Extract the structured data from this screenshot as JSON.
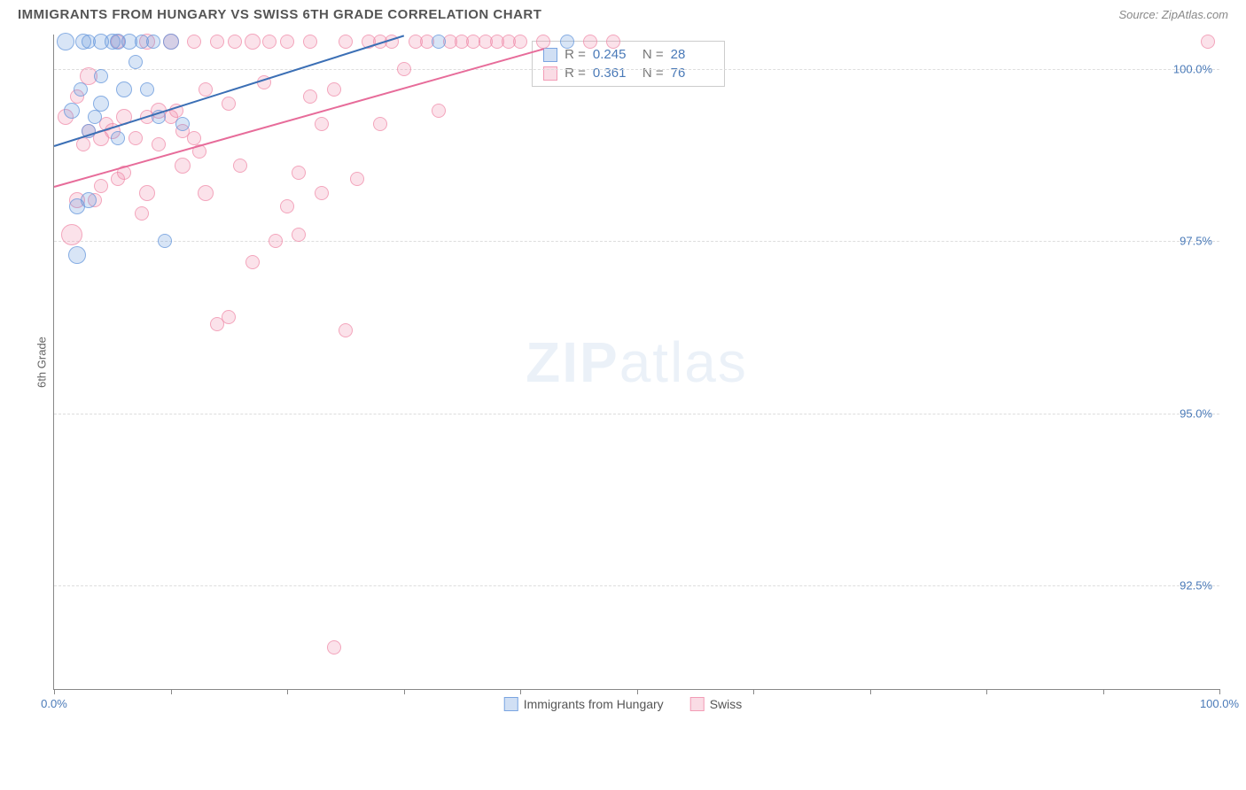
{
  "header": {
    "title": "IMMIGRANTS FROM HUNGARY VS SWISS 6TH GRADE CORRELATION CHART",
    "source": "Source: ZipAtlas.com"
  },
  "chart": {
    "type": "scatter",
    "ylabel": "6th Grade",
    "xlim": [
      0,
      100
    ],
    "ylim": [
      91,
      100.5
    ],
    "yticks": [
      {
        "v": 92.5,
        "label": "92.5%"
      },
      {
        "v": 95.0,
        "label": "95.0%"
      },
      {
        "v": 97.5,
        "label": "97.5%"
      },
      {
        "v": 100.0,
        "label": "100.0%"
      }
    ],
    "xtick_positions": [
      0,
      10,
      20,
      30,
      40,
      50,
      60,
      70,
      80,
      90,
      100
    ],
    "xtick_labels": {
      "0": "0.0%",
      "100": "100.0%"
    },
    "background_color": "#ffffff",
    "grid_color": "#dddddd",
    "series": {
      "hungary": {
        "label": "Immigrants from Hungary",
        "color_fill": "rgba(100,150,220,0.25)",
        "color_stroke": "rgba(100,150,220,0.7)",
        "trend_color": "#3b6fb5",
        "trend": {
          "x1": 0,
          "y1": 98.9,
          "x2": 30,
          "y2": 100.5
        },
        "R": "0.245",
        "N": "28",
        "points": [
          {
            "x": 1,
            "y": 100.4,
            "r": 10
          },
          {
            "x": 1.5,
            "y": 99.4,
            "r": 9
          },
          {
            "x": 2,
            "y": 98.0,
            "r": 9
          },
          {
            "x": 2,
            "y": 97.3,
            "r": 10
          },
          {
            "x": 2.3,
            "y": 99.7,
            "r": 8
          },
          {
            "x": 2.5,
            "y": 100.4,
            "r": 9
          },
          {
            "x": 3,
            "y": 99.1,
            "r": 8
          },
          {
            "x": 3,
            "y": 98.1,
            "r": 9
          },
          {
            "x": 3,
            "y": 100.4,
            "r": 8
          },
          {
            "x": 3.5,
            "y": 99.3,
            "r": 8
          },
          {
            "x": 4,
            "y": 99.5,
            "r": 9
          },
          {
            "x": 4,
            "y": 99.9,
            "r": 8
          },
          {
            "x": 4,
            "y": 100.4,
            "r": 9
          },
          {
            "x": 5,
            "y": 100.4,
            "r": 9
          },
          {
            "x": 5.5,
            "y": 99.0,
            "r": 8
          },
          {
            "x": 5.5,
            "y": 100.4,
            "r": 9
          },
          {
            "x": 6,
            "y": 99.7,
            "r": 9
          },
          {
            "x": 6.5,
            "y": 100.4,
            "r": 9
          },
          {
            "x": 7,
            "y": 100.1,
            "r": 8
          },
          {
            "x": 7.5,
            "y": 100.4,
            "r": 8
          },
          {
            "x": 8,
            "y": 99.7,
            "r": 8
          },
          {
            "x": 8.5,
            "y": 100.4,
            "r": 8
          },
          {
            "x": 9,
            "y": 99.3,
            "r": 8
          },
          {
            "x": 9.5,
            "y": 97.5,
            "r": 8
          },
          {
            "x": 10,
            "y": 100.4,
            "r": 9
          },
          {
            "x": 11,
            "y": 99.2,
            "r": 8
          },
          {
            "x": 33,
            "y": 100.4,
            "r": 8
          },
          {
            "x": 44,
            "y": 100.4,
            "r": 8
          }
        ]
      },
      "swiss": {
        "label": "Swiss",
        "color_fill": "rgba(240,140,170,0.25)",
        "color_stroke": "rgba(240,140,170,0.7)",
        "trend_color": "#e76c9a",
        "trend": {
          "x1": 0,
          "y1": 98.3,
          "x2": 42,
          "y2": 100.3
        },
        "R": "0.361",
        "N": "76",
        "points": [
          {
            "x": 1,
            "y": 99.3,
            "r": 9
          },
          {
            "x": 1.5,
            "y": 97.6,
            "r": 12
          },
          {
            "x": 2,
            "y": 98.1,
            "r": 9
          },
          {
            "x": 2,
            "y": 99.6,
            "r": 8
          },
          {
            "x": 2.5,
            "y": 98.9,
            "r": 8
          },
          {
            "x": 3,
            "y": 99.1,
            "r": 8
          },
          {
            "x": 3,
            "y": 99.9,
            "r": 10
          },
          {
            "x": 3.5,
            "y": 98.1,
            "r": 8
          },
          {
            "x": 4,
            "y": 99.0,
            "r": 9
          },
          {
            "x": 4,
            "y": 98.3,
            "r": 8
          },
          {
            "x": 4.5,
            "y": 99.2,
            "r": 8
          },
          {
            "x": 5,
            "y": 99.1,
            "r": 9
          },
          {
            "x": 5.5,
            "y": 100.4,
            "r": 8
          },
          {
            "x": 5.5,
            "y": 98.4,
            "r": 8
          },
          {
            "x": 6,
            "y": 99.3,
            "r": 9
          },
          {
            "x": 6,
            "y": 98.5,
            "r": 8
          },
          {
            "x": 7,
            "y": 99.0,
            "r": 8
          },
          {
            "x": 7.5,
            "y": 97.9,
            "r": 8
          },
          {
            "x": 8,
            "y": 99.3,
            "r": 8
          },
          {
            "x": 8,
            "y": 100.4,
            "r": 9
          },
          {
            "x": 8,
            "y": 98.2,
            "r": 9
          },
          {
            "x": 9,
            "y": 99.4,
            "r": 9
          },
          {
            "x": 9,
            "y": 98.9,
            "r": 8
          },
          {
            "x": 10,
            "y": 100.4,
            "r": 9
          },
          {
            "x": 10,
            "y": 99.3,
            "r": 8
          },
          {
            "x": 10.5,
            "y": 99.4,
            "r": 8
          },
          {
            "x": 11,
            "y": 98.6,
            "r": 9
          },
          {
            "x": 11,
            "y": 99.1,
            "r": 8
          },
          {
            "x": 12,
            "y": 99.0,
            "r": 8
          },
          {
            "x": 12,
            "y": 100.4,
            "r": 8
          },
          {
            "x": 12.5,
            "y": 98.8,
            "r": 8
          },
          {
            "x": 13,
            "y": 98.2,
            "r": 9
          },
          {
            "x": 13,
            "y": 99.7,
            "r": 8
          },
          {
            "x": 14,
            "y": 100.4,
            "r": 8
          },
          {
            "x": 14,
            "y": 96.3,
            "r": 8
          },
          {
            "x": 15,
            "y": 99.5,
            "r": 8
          },
          {
            "x": 15,
            "y": 96.4,
            "r": 8
          },
          {
            "x": 15.5,
            "y": 100.4,
            "r": 8
          },
          {
            "x": 16,
            "y": 98.6,
            "r": 8
          },
          {
            "x": 17,
            "y": 100.4,
            "r": 9
          },
          {
            "x": 17,
            "y": 97.2,
            "r": 8
          },
          {
            "x": 18,
            "y": 99.8,
            "r": 8
          },
          {
            "x": 18.5,
            "y": 100.4,
            "r": 8
          },
          {
            "x": 19,
            "y": 97.5,
            "r": 8
          },
          {
            "x": 20,
            "y": 98.0,
            "r": 8
          },
          {
            "x": 20,
            "y": 100.4,
            "r": 8
          },
          {
            "x": 21,
            "y": 98.5,
            "r": 8
          },
          {
            "x": 21,
            "y": 97.6,
            "r": 8
          },
          {
            "x": 22,
            "y": 99.6,
            "r": 8
          },
          {
            "x": 22,
            "y": 100.4,
            "r": 8
          },
          {
            "x": 23,
            "y": 98.2,
            "r": 8
          },
          {
            "x": 23,
            "y": 99.2,
            "r": 8
          },
          {
            "x": 24,
            "y": 99.7,
            "r": 8
          },
          {
            "x": 24,
            "y": 91.6,
            "r": 8
          },
          {
            "x": 25,
            "y": 100.4,
            "r": 8
          },
          {
            "x": 25,
            "y": 96.2,
            "r": 8
          },
          {
            "x": 26,
            "y": 98.4,
            "r": 8
          },
          {
            "x": 27,
            "y": 100.4,
            "r": 8
          },
          {
            "x": 28,
            "y": 99.2,
            "r": 8
          },
          {
            "x": 28,
            "y": 100.4,
            "r": 8
          },
          {
            "x": 29,
            "y": 100.4,
            "r": 8
          },
          {
            "x": 30,
            "y": 100.0,
            "r": 8
          },
          {
            "x": 31,
            "y": 100.4,
            "r": 8
          },
          {
            "x": 32,
            "y": 100.4,
            "r": 8
          },
          {
            "x": 33,
            "y": 99.4,
            "r": 8
          },
          {
            "x": 34,
            "y": 100.4,
            "r": 8
          },
          {
            "x": 35,
            "y": 100.4,
            "r": 8
          },
          {
            "x": 36,
            "y": 100.4,
            "r": 8
          },
          {
            "x": 37,
            "y": 100.4,
            "r": 8
          },
          {
            "x": 38,
            "y": 100.4,
            "r": 8
          },
          {
            "x": 39,
            "y": 100.4,
            "r": 8
          },
          {
            "x": 40,
            "y": 100.4,
            "r": 8
          },
          {
            "x": 42,
            "y": 100.4,
            "r": 8
          },
          {
            "x": 46,
            "y": 100.4,
            "r": 8
          },
          {
            "x": 48,
            "y": 100.4,
            "r": 8
          },
          {
            "x": 99,
            "y": 100.4,
            "r": 8
          }
        ]
      }
    },
    "stats_box": {
      "left_pct": 41,
      "top_pct": 1
    }
  },
  "watermark": {
    "zip": "ZIP",
    "atlas": "atlas"
  },
  "legend": {
    "items": [
      {
        "key": "hungary",
        "label": "Immigrants from Hungary"
      },
      {
        "key": "swiss",
        "label": "Swiss"
      }
    ]
  }
}
